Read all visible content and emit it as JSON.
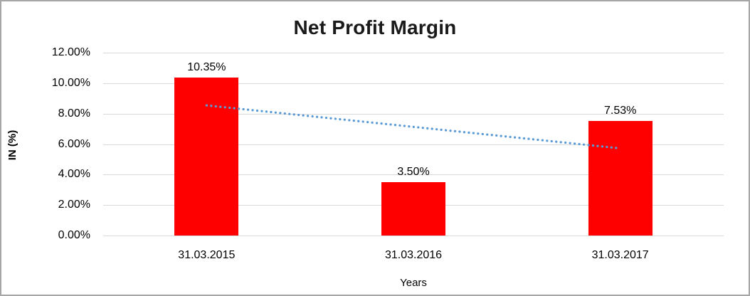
{
  "chart_data": {
    "type": "bar",
    "title": "Net Profit Margin",
    "xlabel": "Years",
    "ylabel": "IN (%)",
    "categories": [
      "31.03.2015",
      "31.03.2016",
      "31.03.2017"
    ],
    "values": [
      10.35,
      3.5,
      7.53
    ],
    "value_labels": [
      "10.35%",
      "3.50%",
      "7.53%"
    ],
    "y_tick_values": [
      0,
      2,
      4,
      6,
      8,
      10,
      12
    ],
    "y_tick_labels": [
      "0.00%",
      "2.00%",
      "4.00%",
      "6.00%",
      "8.00%",
      "10.00%",
      "12.00%"
    ],
    "ylim": [
      0,
      12
    ],
    "grid": true,
    "legend": "none",
    "bar_color": "#ff0000",
    "gridline_color": "#d9d9d9",
    "text_color": "#000000",
    "frame_border_color": "#a6a6a6",
    "trendline": {
      "type": "linear",
      "style": "dotted",
      "color": "#5b9bd5",
      "start_value": 8.54,
      "end_value": 5.72
    }
  }
}
